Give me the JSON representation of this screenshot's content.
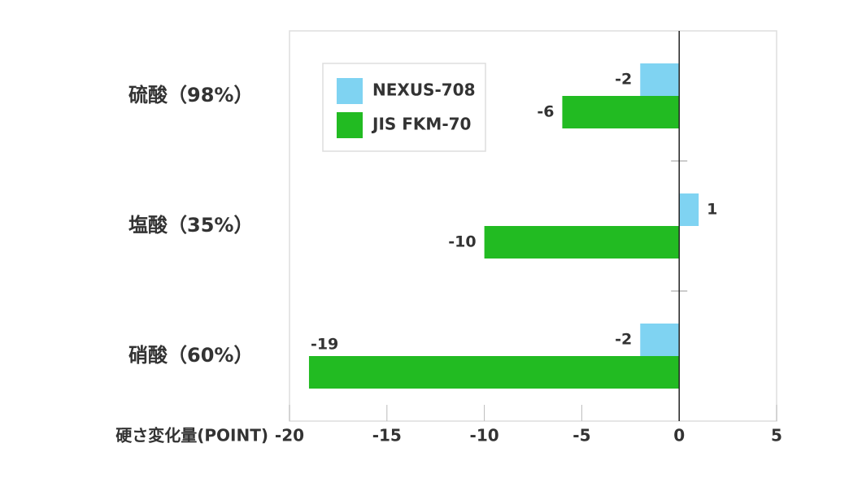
{
  "chart_data": {
    "type": "barh",
    "categories": [
      "硫酸（98%）",
      "塩酸（35%）",
      "硝酸（60%）"
    ],
    "series": [
      {
        "name": "NEXUS-708",
        "color": "#7fd3f2",
        "values": [
          -2,
          1,
          -2
        ]
      },
      {
        "name": "JIS FKM-70",
        "color": "#22bb22",
        "values": [
          -6,
          -10,
          -19
        ]
      }
    ],
    "xlabel": "硬さ変化量(POINT)",
    "xlim": [
      -20,
      5
    ],
    "xticks": [
      -20,
      -15,
      -10,
      -5,
      0,
      5
    ],
    "legend": "upper left"
  }
}
